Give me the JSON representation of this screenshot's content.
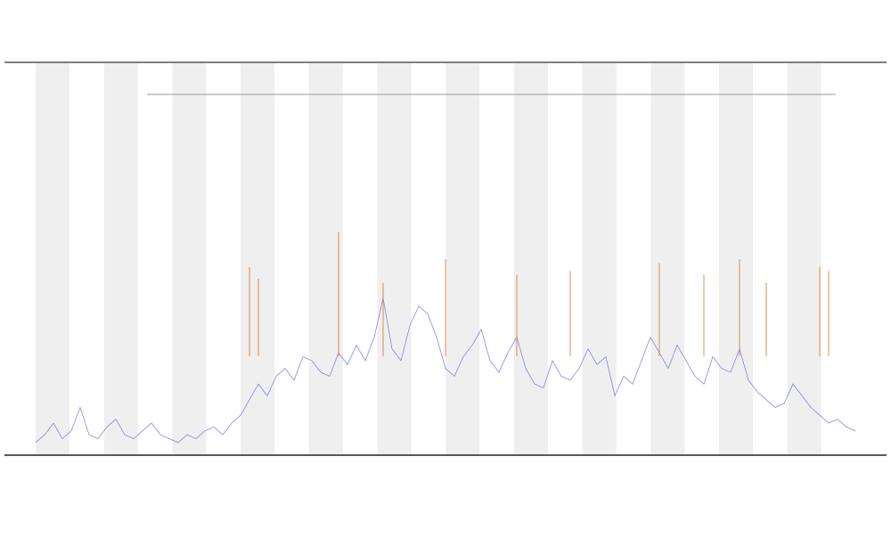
{
  "chart_data": {
    "type": "line",
    "ylim": [
      0,
      100
    ],
    "series": [
      {
        "color": "#6a6ae0",
        "style": "line",
        "values": [
          3,
          5,
          8,
          4,
          6,
          12,
          5,
          4,
          7,
          9,
          5,
          4,
          6,
          8,
          5,
          4,
          3,
          5,
          4,
          6,
          7,
          5,
          8,
          10,
          14,
          18,
          15,
          20,
          22,
          19,
          25,
          24,
          21,
          20,
          26,
          23,
          28,
          24,
          30,
          40,
          27,
          24,
          33,
          38,
          36,
          30,
          22,
          20,
          25,
          28,
          32,
          24,
          21,
          26,
          30,
          22,
          18,
          17,
          24,
          20,
          19,
          22,
          27,
          23,
          25,
          15,
          20,
          18,
          24,
          30,
          26,
          22,
          28,
          24,
          20,
          18,
          25,
          22,
          21,
          27,
          19,
          16,
          14,
          12,
          13,
          18,
          15,
          12,
          10,
          8,
          9,
          7,
          6
        ]
      },
      {
        "color": "#e07a2a",
        "style": "spike",
        "values": [
          null,
          null,
          null,
          null,
          null,
          null,
          null,
          null,
          null,
          null,
          null,
          null,
          null,
          null,
          null,
          null,
          null,
          null,
          null,
          null,
          null,
          null,
          null,
          null,
          48,
          45,
          null,
          null,
          null,
          null,
          null,
          null,
          null,
          null,
          57,
          null,
          null,
          null,
          null,
          44,
          null,
          null,
          null,
          null,
          null,
          null,
          50,
          null,
          null,
          null,
          null,
          null,
          null,
          null,
          46,
          null,
          null,
          null,
          null,
          null,
          47,
          null,
          null,
          null,
          null,
          null,
          null,
          null,
          null,
          null,
          49,
          null,
          null,
          null,
          null,
          46,
          null,
          null,
          null,
          50,
          null,
          null,
          44,
          null,
          null,
          null,
          null,
          null,
          48,
          47,
          null,
          null,
          null
        ]
      }
    ]
  }
}
